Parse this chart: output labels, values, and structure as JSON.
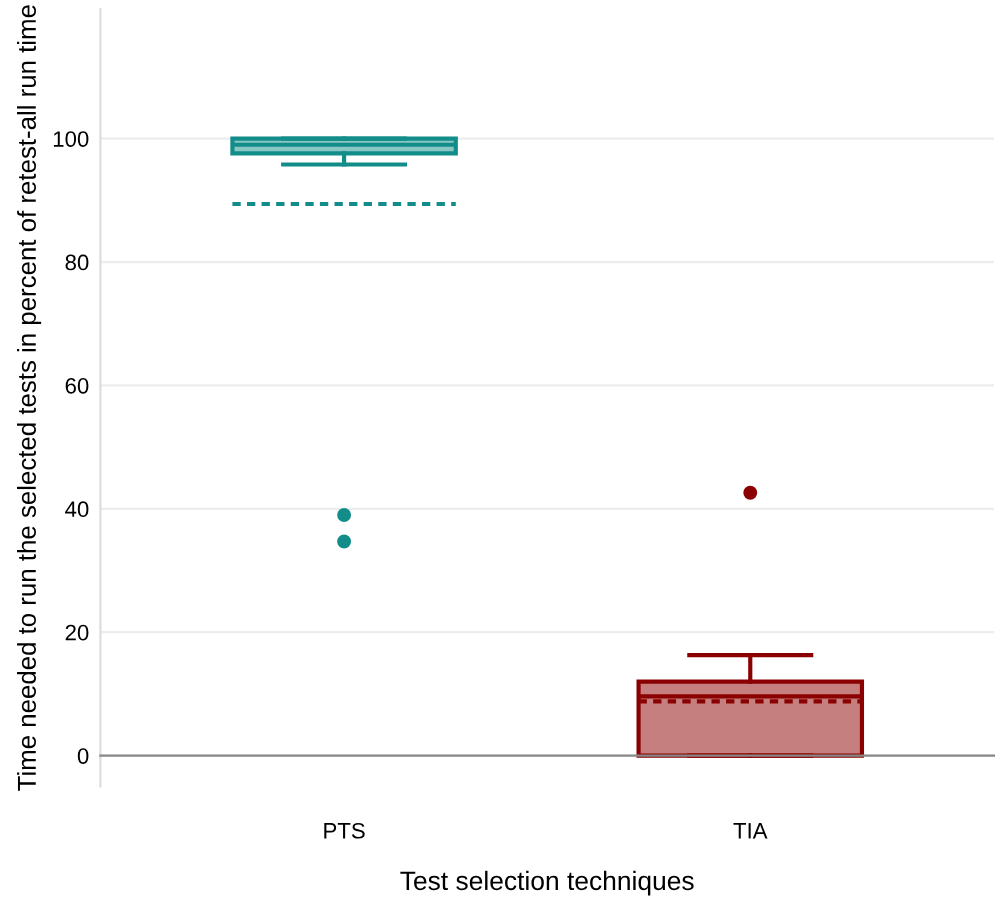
{
  "chart_data": {
    "type": "box",
    "xlabel": "Test selection techniques",
    "ylabel": "Time needed to run the selected tests in percent of retest-all run time",
    "categories": [
      "PTS",
      "TIA"
    ],
    "boxes": [
      {
        "low": 95.8,
        "q1": 97.6,
        "median": 99,
        "q3": 100,
        "high": 100,
        "mean": 89.4,
        "outliers": [
          39,
          34.7
        ]
      },
      {
        "low": 0,
        "q1": 0,
        "median": 9.6,
        "q3": 12,
        "high": 16.3,
        "mean": 8.8,
        "outliers": [
          42.6
        ]
      }
    ],
    "colors": [
      "#138d8a",
      "#8b0000"
    ],
    "ylim": [
      -5,
      121
    ],
    "yticks": [
      0,
      20,
      40,
      60,
      80,
      100
    ],
    "grid": "y"
  }
}
